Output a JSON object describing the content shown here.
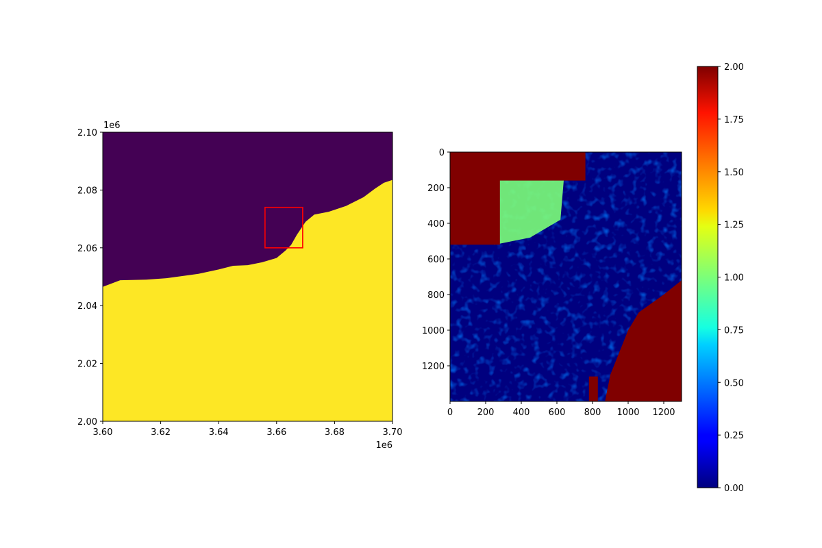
{
  "chart_data": [
    {
      "type": "heatmap",
      "title": "",
      "xlabel": "",
      "ylabel": "",
      "x_offset_label": "1e6",
      "y_offset_label": "1e6",
      "xlim": [
        3.6,
        3.7
      ],
      "ylim": [
        2.0,
        2.1
      ],
      "x_ticks": [
        3.6,
        3.62,
        3.64,
        3.66,
        3.68,
        3.7
      ],
      "x_tick_labels": [
        "3.60",
        "3.62",
        "3.64",
        "3.66",
        "3.68",
        "3.70"
      ],
      "y_ticks": [
        2.0,
        2.02,
        2.04,
        2.06,
        2.08,
        2.1
      ],
      "y_tick_labels": [
        "2.00",
        "2.02",
        "2.04",
        "2.06",
        "2.08",
        "2.10"
      ],
      "classes": [
        {
          "value": 0,
          "color": "#440154"
        },
        {
          "value": 1,
          "color": "#fde725"
        }
      ],
      "boundary": {
        "description_units": "data units (x1e6)",
        "x": [
          3.6,
          3.606,
          3.615,
          3.622,
          3.627,
          3.633,
          3.64,
          3.645,
          3.65,
          3.655,
          3.66,
          3.663,
          3.665,
          3.667,
          3.67,
          3.673,
          3.678,
          3.684,
          3.69,
          3.694,
          3.697,
          3.7
        ],
        "y": [
          2.0465,
          2.0488,
          2.049,
          2.0495,
          2.0502,
          2.051,
          2.0525,
          2.0538,
          2.054,
          2.055,
          2.0565,
          2.059,
          2.061,
          2.0645,
          2.069,
          2.0715,
          2.0725,
          2.0745,
          2.0775,
          2.0805,
          2.0825,
          2.0835
        ]
      },
      "highlight_box": {
        "x0": 3.656,
        "x1": 3.669,
        "y0": 2.06,
        "y1": 2.074,
        "color": "#ff0000"
      }
    },
    {
      "type": "heatmap",
      "title": "",
      "xlabel": "",
      "ylabel": "",
      "colormap": "jet",
      "xlim": [
        0,
        1300
      ],
      "ylim": [
        1400,
        0
      ],
      "x_ticks": [
        0,
        200,
        400,
        600,
        800,
        1000,
        1200
      ],
      "x_tick_labels": [
        "0",
        "200",
        "400",
        "600",
        "800",
        "1000",
        "1200"
      ],
      "y_ticks": [
        0,
        200,
        400,
        600,
        800,
        1000,
        1200
      ],
      "y_tick_labels": [
        "0",
        "200",
        "400",
        "600",
        "800",
        "1000",
        "1200"
      ],
      "colorbar": {
        "range": [
          0.0,
          2.0
        ],
        "ticks": [
          0.0,
          0.25,
          0.5,
          0.75,
          1.0,
          1.25,
          1.5,
          1.75,
          2.0
        ],
        "tick_labels": [
          "0.00",
          "0.25",
          "0.50",
          "0.75",
          "1.00",
          "1.25",
          "1.50",
          "1.75",
          "2.00"
        ]
      },
      "regions": [
        {
          "value": 2.0,
          "area": "upper-left highland",
          "x": [
            0,
            280
          ],
          "y": [
            0,
            520
          ]
        },
        {
          "value": 2.0,
          "area": "top ridge",
          "x": [
            220,
            760
          ],
          "y": [
            0,
            160
          ]
        },
        {
          "value": 1.2,
          "area": "mixed band",
          "x": [
            100,
            650
          ],
          "y": [
            100,
            500
          ]
        },
        {
          "value": 2.0,
          "area": "sea (lower right)",
          "x": [
            870,
            1300
          ],
          "y": [
            720,
            1400
          ]
        },
        {
          "value": 0.0,
          "area": "background lowland",
          "x": [
            0,
            1300
          ],
          "y": [
            0,
            1400
          ]
        }
      ]
    }
  ]
}
